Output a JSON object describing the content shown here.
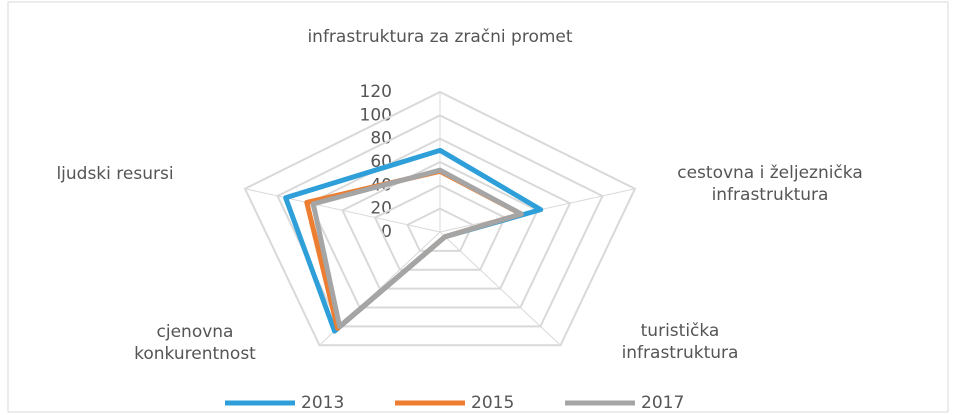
{
  "chart_data": {
    "type": "radar",
    "categories": [
      "infrastruktura za zračni promet",
      "cestovna i željeznička infrastruktura",
      "turistička infrastruktura",
      "cjenovna konkurentnost",
      "ljudski resursi"
    ],
    "series": [
      {
        "name": "2013",
        "color": "#2e9fd8",
        "values": [
          70,
          62,
          5,
          105,
          95
        ]
      },
      {
        "name": "2015",
        "color": "#ed7d31",
        "values": [
          52,
          50,
          5,
          102,
          82
        ]
      },
      {
        "name": "2017",
        "color": "#a5a5a5",
        "values": [
          53,
          50,
          5,
          100,
          78
        ]
      }
    ],
    "ylim": [
      0,
      120
    ],
    "yticks": [
      0,
      20,
      40,
      60,
      80,
      100,
      120
    ],
    "grid": true,
    "legend": "bottom"
  }
}
